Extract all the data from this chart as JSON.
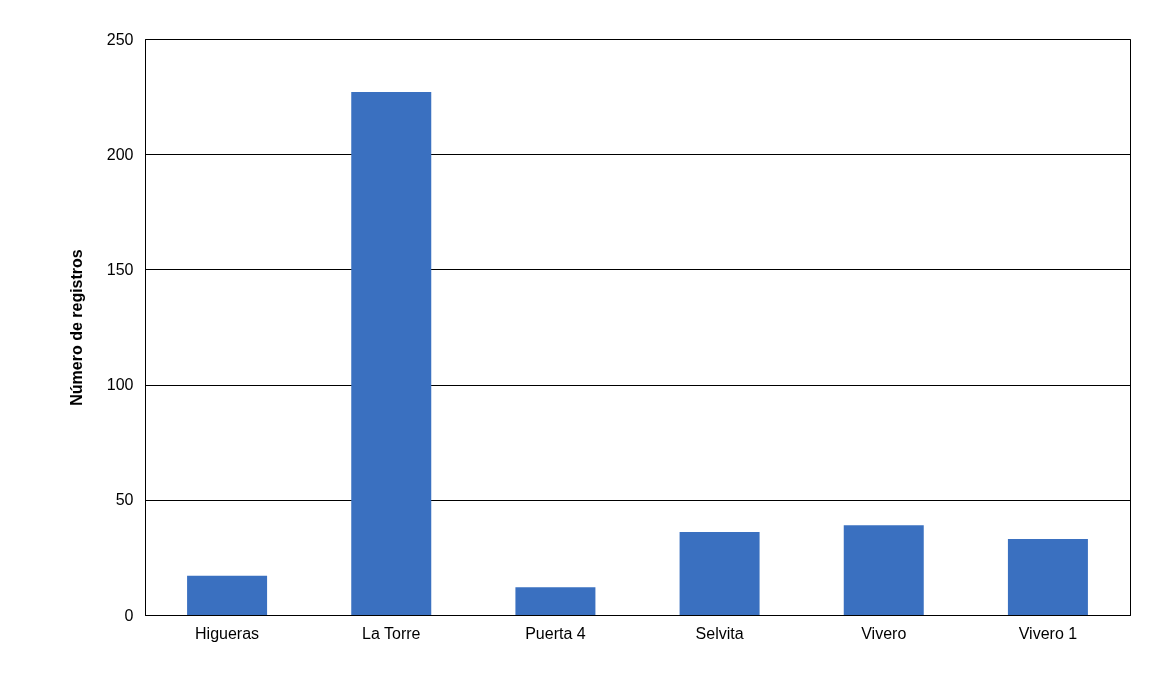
{
  "chart_data": {
    "type": "bar",
    "ylabel": "Número de registros",
    "categories": [
      "Higueras",
      "La Torre",
      "Puerta 4",
      "Selvita",
      "Vivero",
      "Vivero 1"
    ],
    "values": [
      17,
      227,
      12,
      36,
      39,
      33
    ],
    "color": "#3a70c0",
    "ylim": [
      0,
      250
    ],
    "yticks": [
      0,
      50,
      100,
      150,
      200,
      250
    ],
    "grid": "y"
  }
}
